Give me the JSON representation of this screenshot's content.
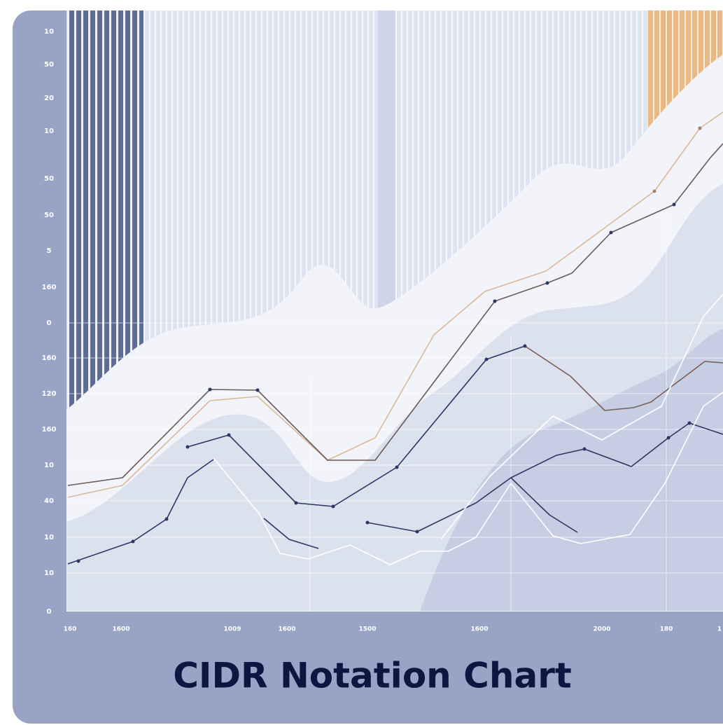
{
  "image": {
    "title": "CIDR Notation Chart",
    "y_labels": [
      "10",
      "50",
      "20",
      "10",
      "50",
      "50",
      "5",
      "160",
      "0",
      "160",
      "120",
      "160",
      "10",
      "40",
      "10",
      "10",
      "0"
    ],
    "x_labels": [
      "160",
      "1600",
      "1009",
      "1600",
      "1500",
      "1600",
      "2000",
      "180",
      "1"
    ]
  }
}
